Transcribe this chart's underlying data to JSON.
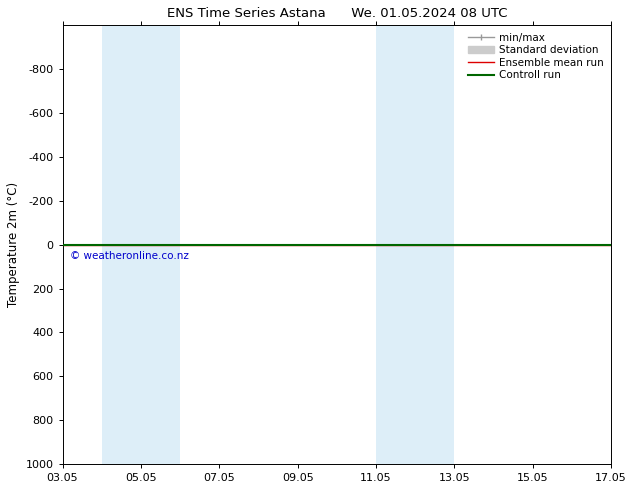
{
  "title_left": "ENS Time Series Astana",
  "title_right": "We. 01.05.2024 08 UTC",
  "ylabel": "Temperature 2m (°C)",
  "xtick_positions": [
    3,
    5,
    7,
    9,
    11,
    13,
    15,
    17
  ],
  "xtick_labels": [
    "03.05",
    "05.05",
    "07.05",
    "09.05",
    "11.05",
    "13.05",
    "15.05",
    "17.05"
  ],
  "ylim": [
    -1000,
    1000
  ],
  "yticks": [
    -800,
    -600,
    -400,
    -200,
    0,
    200,
    400,
    600,
    800,
    1000
  ],
  "bg_color": "#ffffff",
  "plot_bg_color": "#ffffff",
  "shaded_bands": [
    {
      "xmin": 4.0,
      "xmax": 6.0,
      "color": "#ddeef8"
    },
    {
      "xmin": 11.0,
      "xmax": 13.0,
      "color": "#ddeef8"
    }
  ],
  "control_run_y": 0.0,
  "ensemble_mean_y": 0.0,
  "watermark_text": "© weatheronline.co.nz",
  "watermark_color": "#0000cc",
  "legend_items": [
    {
      "label": "min/max",
      "color": "#999999",
      "lw": 1.0
    },
    {
      "label": "Standard deviation",
      "color": "#cccccc",
      "lw": 6
    },
    {
      "label": "Ensemble mean run",
      "color": "#dd0000",
      "lw": 1.0
    },
    {
      "label": "Controll run",
      "color": "#006600",
      "lw": 1.5
    }
  ],
  "x_numeric_start": 3.0,
  "x_numeric_end": 17.0,
  "invert_yaxis": true
}
